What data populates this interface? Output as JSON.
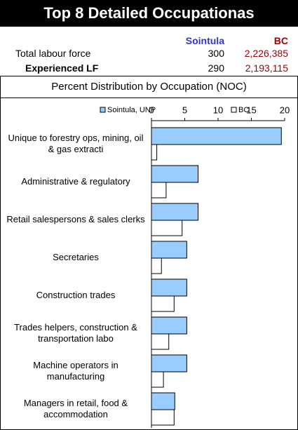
{
  "header": {
    "title": "Top 8 Detailed Occupationas",
    "subtitle": "Percent Distribution by Occupation (NOC)"
  },
  "table": {
    "columns": [
      "Sointula",
      "BC"
    ],
    "rows": [
      [
        "Total labour force",
        300,
        "2,226,385"
      ],
      [
        "Experienced LF",
        290,
        "2,193,115"
      ]
    ]
  },
  "chart_data": {
    "type": "hbar",
    "categories": [
      "Unique to forestry ops, mining, oil & gas extracti",
      "Administrative & regulatory",
      "Retail salespersons & sales clerks",
      "Secretaries",
      "Construction trades",
      "Trades helpers, construction & transportation labo",
      "Machine operators in manufacturing",
      "Managers in retail, food & accommodation"
    ],
    "series": [
      {
        "name": "Sointula, UNP",
        "color": "#99ccff",
        "values": [
          19.5,
          7.0,
          7.0,
          5.3,
          5.3,
          5.3,
          5.3,
          3.5
        ]
      },
      {
        "name": "BC",
        "color": "#ffffff",
        "values": [
          0.8,
          2.2,
          4.6,
          1.5,
          3.4,
          2.6,
          1.8,
          3.4
        ]
      }
    ],
    "xlim": [
      0,
      20
    ],
    "xticks": [
      0,
      5,
      10,
      15,
      20
    ]
  }
}
